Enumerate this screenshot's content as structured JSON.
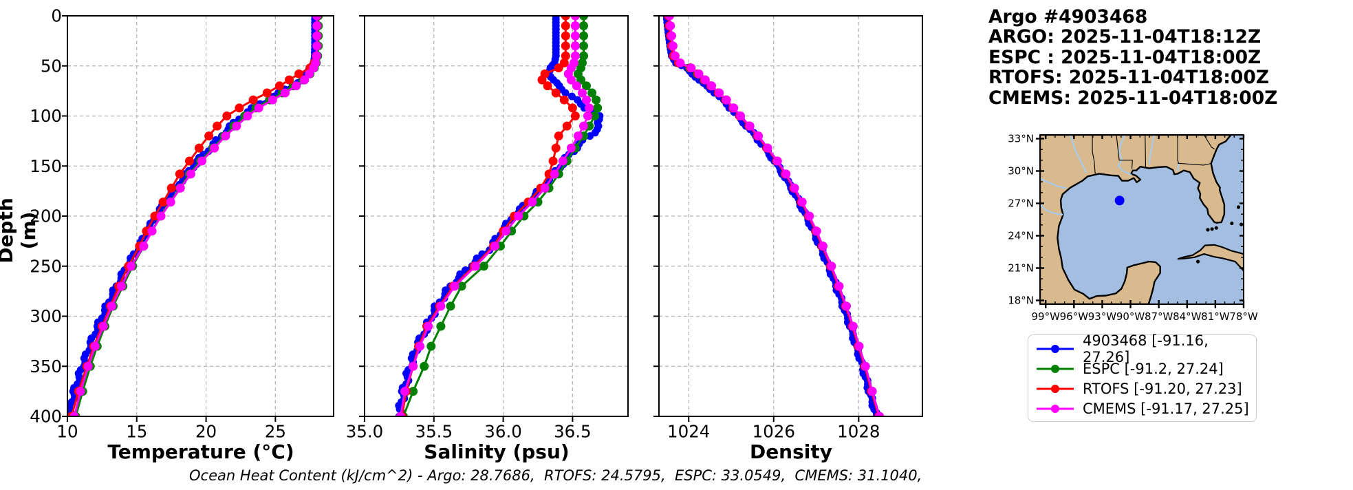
{
  "header": {
    "lines": [
      "Argo #4903468",
      "ARGO: 2025-11-04T18:12Z",
      "ESPC : 2025-11-04T18:00Z",
      "RTOFS: 2025-11-04T18:00Z",
      "CMEMS: 2025-11-04T18:00Z"
    ]
  },
  "plots": {
    "ylabel": "Depth (m)"
  },
  "footer": {
    "text": "Ocean Heat Content (kJ/cm^2) - Argo: 28.7686,  RTOFS: 24.5795,  ESPC: 33.0549,  CMEMS: 31.1040,"
  },
  "colors": {
    "argo": "#0000ff",
    "espc": "#008000",
    "rtofs": "#ff0000",
    "cmems": "#ff00ff",
    "grid": "#b3b3b3",
    "spine": "#000000"
  },
  "legend": {
    "entries": [
      {
        "label": "4903468 [-91.16, 27.26]",
        "color": "#0000ff"
      },
      {
        "label": "ESPC [-91.2, 27.24]",
        "color": "#008000"
      },
      {
        "label": "RTOFS [-91.20, 27.23]",
        "color": "#ff0000"
      },
      {
        "label": "CMEMS [-91.17, 27.25]",
        "color": "#ff00ff"
      }
    ]
  },
  "map": {
    "extent": {
      "lon": [
        -99.6,
        -78.0
      ],
      "lat": [
        17.65,
        33.35
      ]
    },
    "lon_tick_values": [
      -99,
      -96,
      -93,
      -90,
      -87,
      -84,
      -81,
      -78
    ],
    "lon_tick_labels": [
      "99°W",
      "96°W",
      "93°W",
      "90°W",
      "87°W",
      "84°W",
      "81°W",
      "78°W"
    ],
    "lat_tick_values": [
      33,
      30,
      27,
      24,
      21,
      18
    ],
    "lat_tick_labels": [
      "33°N",
      "30°N",
      "27°N",
      "24°N",
      "21°N",
      "18°N"
    ],
    "land_color": "#d9ba8f",
    "water_color": "#a3bee1",
    "river_color": "#a8cbec",
    "float_marker": {
      "lon": -91.16,
      "lat": 27.26,
      "color": "#0000ff"
    }
  },
  "chart_data": [
    {
      "type": "line",
      "xlabel": "Temperature (°C)",
      "ylabel": "Depth (m)",
      "xlim": [
        10,
        29.2
      ],
      "ylim": [
        0,
        400
      ],
      "xtick_values": [
        10,
        15,
        20,
        25
      ],
      "xtick_labels": [
        "10",
        "15",
        "20",
        "25"
      ],
      "ytick_values": [
        0,
        50,
        100,
        150,
        200,
        250,
        300,
        350,
        400
      ],
      "ytick_labels": [
        "0",
        "50",
        "100",
        "150",
        "200",
        "250",
        "300",
        "350",
        "400"
      ],
      "grid": true,
      "depths": [
        0,
        10,
        20,
        30,
        40,
        47,
        52,
        58,
        64,
        70,
        77,
        84,
        92,
        100,
        110,
        120,
        132,
        145,
        158,
        172,
        186,
        200,
        215,
        230,
        250,
        270,
        290,
        310,
        330,
        350,
        375,
        400
      ],
      "series": [
        {
          "name": "4903468",
          "color": "#0000ff",
          "dense": true,
          "values": [
            27.85,
            27.85,
            27.85,
            27.85,
            27.83,
            27.78,
            27.55,
            27.2,
            26.9,
            26.2,
            25.3,
            24.4,
            23.4,
            22.6,
            21.8,
            21.1,
            20.3,
            19.4,
            18.6,
            17.8,
            17.1,
            16.4,
            15.8,
            15.2,
            14.3,
            13.55,
            12.85,
            12.2,
            11.6,
            11.1,
            10.5,
            10.1
          ]
        },
        {
          "name": "ESPC",
          "color": "#008000",
          "dense": false,
          "values": [
            28.1,
            28.1,
            28.1,
            28.1,
            28.05,
            27.95,
            27.8,
            27.5,
            27.0,
            26.3,
            25.5,
            24.6,
            23.6,
            22.8,
            22.0,
            21.3,
            20.5,
            19.6,
            18.8,
            18.1,
            17.4,
            16.7,
            16.1,
            15.5,
            14.7,
            14.0,
            13.3,
            12.7,
            12.15,
            11.65,
            11.1,
            10.6
          ]
        },
        {
          "name": "RTOFS",
          "color": "#ff0000",
          "dense": false,
          "values": [
            28.0,
            28.0,
            28.0,
            28.0,
            27.95,
            27.8,
            27.5,
            26.7,
            26.0,
            25.3,
            24.4,
            23.4,
            22.4,
            21.5,
            20.8,
            20.2,
            19.5,
            18.8,
            18.1,
            17.5,
            16.9,
            16.3,
            15.7,
            15.2,
            14.4,
            13.7,
            13.1,
            12.5,
            11.9,
            11.4,
            10.8,
            10.3
          ]
        },
        {
          "name": "CMEMS",
          "color": "#ff00ff",
          "dense": false,
          "values": [
            28.0,
            28.0,
            28.0,
            28.0,
            27.98,
            27.9,
            27.75,
            27.45,
            27.1,
            26.5,
            25.7,
            24.8,
            23.8,
            23.0,
            22.2,
            21.4,
            20.6,
            19.7,
            18.9,
            18.15,
            17.45,
            16.75,
            16.1,
            15.5,
            14.6,
            13.9,
            13.2,
            12.6,
            12.0,
            11.5,
            10.95,
            10.5
          ]
        }
      ]
    },
    {
      "type": "line",
      "xlabel": "Salinity (psu)",
      "ylabel": "Depth (m)",
      "xlim": [
        35.0,
        36.9
      ],
      "ylim": [
        0,
        400
      ],
      "xtick_values": [
        35.0,
        35.5,
        36.0,
        36.5
      ],
      "xtick_labels": [
        "35.0",
        "35.5",
        "36.0",
        "36.5"
      ],
      "ytick_values": [
        0,
        50,
        100,
        150,
        200,
        250,
        300,
        350,
        400
      ],
      "grid": true,
      "depths": [
        0,
        10,
        20,
        30,
        40,
        47,
        52,
        58,
        64,
        70,
        77,
        84,
        92,
        100,
        110,
        120,
        132,
        145,
        158,
        172,
        186,
        200,
        215,
        230,
        250,
        270,
        290,
        310,
        330,
        350,
        375,
        400
      ],
      "series": [
        {
          "name": "4903468",
          "color": "#0000ff",
          "dense": true,
          "values": [
            36.38,
            36.38,
            36.38,
            36.38,
            36.38,
            36.37,
            36.34,
            36.33,
            36.36,
            36.4,
            36.46,
            36.52,
            36.6,
            36.68,
            36.7,
            36.62,
            36.52,
            36.44,
            36.36,
            36.28,
            36.18,
            36.08,
            35.99,
            35.92,
            35.76,
            35.62,
            35.52,
            35.45,
            35.38,
            35.33,
            35.28,
            35.25
          ]
        },
        {
          "name": "ESPC",
          "color": "#008000",
          "dense": false,
          "values": [
            36.58,
            36.58,
            36.58,
            36.58,
            36.58,
            36.57,
            36.56,
            36.54,
            36.56,
            36.6,
            36.64,
            36.67,
            36.68,
            36.66,
            36.62,
            36.58,
            36.52,
            36.46,
            36.4,
            36.33,
            36.25,
            36.15,
            36.06,
            35.98,
            35.86,
            35.7,
            35.62,
            35.55,
            35.48,
            35.43,
            35.35,
            35.28
          ]
        },
        {
          "name": "RTOFS",
          "color": "#ff0000",
          "dense": false,
          "values": [
            36.45,
            36.45,
            36.45,
            36.45,
            36.45,
            36.44,
            36.4,
            36.3,
            36.28,
            36.32,
            36.38,
            36.44,
            36.5,
            36.52,
            36.46,
            36.4,
            36.38,
            36.36,
            36.33,
            36.27,
            36.18,
            36.08,
            36.0,
            35.93,
            35.79,
            35.64,
            35.54,
            35.45,
            35.39,
            35.35,
            35.3,
            35.27
          ]
        },
        {
          "name": "CMEMS",
          "color": "#ff00ff",
          "dense": false,
          "values": [
            36.52,
            36.52,
            36.52,
            36.52,
            36.52,
            36.51,
            36.49,
            36.47,
            36.49,
            36.53,
            36.57,
            36.6,
            36.62,
            36.61,
            36.58,
            36.54,
            36.49,
            36.43,
            36.37,
            36.3,
            36.21,
            36.11,
            36.02,
            35.94,
            35.8,
            35.65,
            35.55,
            35.46,
            35.4,
            35.35,
            35.29,
            35.26
          ]
        }
      ]
    },
    {
      "type": "line",
      "xlabel": "Density",
      "ylabel": "Depth (m)",
      "xlim": [
        1023.3,
        1029.5
      ],
      "ylim": [
        0,
        400
      ],
      "xtick_values": [
        1024,
        1026,
        1028
      ],
      "xtick_labels": [
        "1024",
        "1026",
        "1028"
      ],
      "ytick_values": [
        0,
        50,
        100,
        150,
        200,
        250,
        300,
        350,
        400
      ],
      "grid": true,
      "depths": [
        0,
        10,
        20,
        30,
        40,
        47,
        52,
        58,
        64,
        70,
        77,
        84,
        92,
        100,
        110,
        120,
        132,
        145,
        158,
        172,
        186,
        200,
        215,
        230,
        250,
        270,
        290,
        310,
        330,
        350,
        375,
        400
      ],
      "series": [
        {
          "name": "4903468",
          "color": "#0000ff",
          "dense": true,
          "values": [
            1023.48,
            1023.5,
            1023.53,
            1023.56,
            1023.6,
            1023.7,
            1023.96,
            1024.08,
            1024.24,
            1024.42,
            1024.62,
            1024.8,
            1024.98,
            1025.15,
            1025.37,
            1025.57,
            1025.79,
            1026.02,
            1026.22,
            1026.42,
            1026.6,
            1026.77,
            1026.94,
            1027.09,
            1027.29,
            1027.47,
            1027.64,
            1027.8,
            1027.94,
            1028.09,
            1028.25,
            1028.42
          ]
        },
        {
          "name": "ESPC",
          "color": "#008000",
          "dense": false,
          "values": [
            1023.54,
            1023.56,
            1023.59,
            1023.62,
            1023.66,
            1023.76,
            1024.02,
            1024.2,
            1024.36,
            1024.52,
            1024.7,
            1024.88,
            1025.05,
            1025.21,
            1025.43,
            1025.63,
            1025.85,
            1026.08,
            1026.28,
            1026.48,
            1026.66,
            1026.83,
            1027.0,
            1027.16,
            1027.36,
            1027.54,
            1027.71,
            1027.87,
            1028.01,
            1028.16,
            1028.32,
            1028.49
          ]
        },
        {
          "name": "RTOFS",
          "color": "#ff0000",
          "dense": false,
          "values": [
            1023.52,
            1023.54,
            1023.57,
            1023.6,
            1023.64,
            1023.76,
            1024.04,
            1024.22,
            1024.37,
            1024.52,
            1024.7,
            1024.87,
            1025.04,
            1025.2,
            1025.42,
            1025.62,
            1025.84,
            1026.07,
            1026.27,
            1026.47,
            1026.65,
            1026.82,
            1026.99,
            1027.14,
            1027.34,
            1027.52,
            1027.69,
            1027.85,
            1027.99,
            1028.14,
            1028.3,
            1028.47
          ]
        },
        {
          "name": "CMEMS",
          "color": "#ff00ff",
          "dense": false,
          "values": [
            1023.55,
            1023.57,
            1023.6,
            1023.63,
            1023.68,
            1023.8,
            1024.06,
            1024.24,
            1024.39,
            1024.54,
            1024.72,
            1024.89,
            1025.06,
            1025.22,
            1025.44,
            1025.64,
            1025.86,
            1026.09,
            1026.29,
            1026.49,
            1026.67,
            1026.84,
            1027.01,
            1027.16,
            1027.36,
            1027.54,
            1027.71,
            1027.87,
            1028.01,
            1028.16,
            1028.32,
            1028.49
          ]
        }
      ]
    }
  ]
}
